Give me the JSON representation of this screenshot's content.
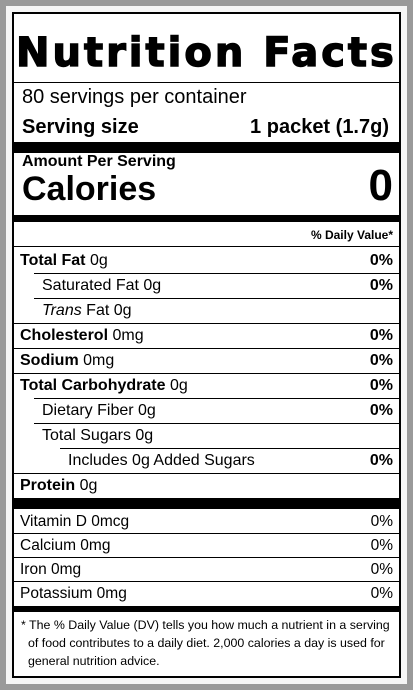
{
  "title": "Nutrition Facts",
  "servings_per_container": "80 servings per container",
  "serving_size_label": "Serving size",
  "serving_size_value": "1 packet (1.7g)",
  "amount_per_serving": "Amount Per Serving",
  "calories_label": "Calories",
  "calories_value": "0",
  "daily_value_header": "% Daily Value*",
  "nutrients": [
    {
      "name": "Total Fat",
      "amount": "0g",
      "dv": "0%"
    },
    {
      "name": "Saturated Fat",
      "amount": "0g",
      "dv": "0%"
    },
    {
      "name": "Trans",
      "amount": "Fat 0g",
      "dv": ""
    },
    {
      "name": "Cholesterol",
      "amount": "0mg",
      "dv": "0%"
    },
    {
      "name": "Sodium",
      "amount": "0mg",
      "dv": "0%"
    },
    {
      "name": "Total Carbohydrate",
      "amount": "0g",
      "dv": "0%"
    },
    {
      "name": "Dietary Fiber",
      "amount": "0g",
      "dv": "0%"
    },
    {
      "name": "Total Sugars",
      "amount": "0g",
      "dv": ""
    },
    {
      "name": "Includes 0g Added Sugars",
      "amount": "",
      "dv": "0%"
    },
    {
      "name": "Protein",
      "amount": "0g",
      "dv": ""
    }
  ],
  "vitamins": [
    {
      "name": "Vitamin D 0mcg",
      "dv": "0%"
    },
    {
      "name": "Calcium 0mg",
      "dv": "0%"
    },
    {
      "name": "Iron 0mg",
      "dv": "0%"
    },
    {
      "name": "Potassium 0mg",
      "dv": "0%"
    }
  ],
  "footnote": "* The % Daily Value (DV) tells you how much a nutrient in a serving of food contributes to a daily diet. 2,000 calories a day is used for general nutrition advice."
}
